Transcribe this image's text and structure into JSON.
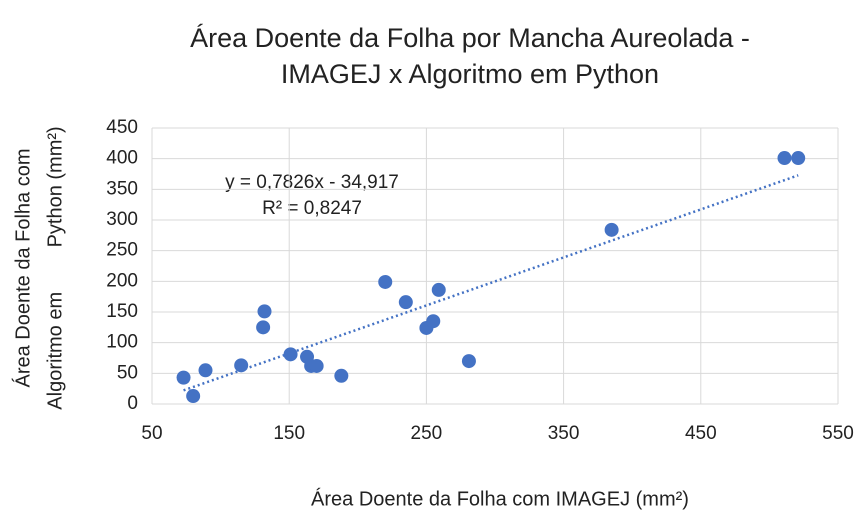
{
  "chart_data": {
    "type": "scatter",
    "title": [
      "Área Doente da Folha por Mancha Aureolada -",
      "IMAGEJ x Algoritmo em Python"
    ],
    "x_label": "Área Doente da Folha com IMAGEJ (mm²)",
    "y_label": [
      "Área Doente da Folha com",
      "Algoritmo em        Python (mm²)"
    ],
    "series": [
      {
        "name": "Área Doente",
        "color": "#4472c4",
        "x": [
          73,
          80,
          89,
          115,
          132,
          131,
          151,
          163,
          166,
          170,
          188,
          220,
          235,
          250,
          255,
          259,
          281,
          385,
          511,
          521
        ],
        "values": [
          43,
          13,
          55,
          63,
          151,
          125,
          81,
          77,
          62,
          62,
          46,
          199,
          166,
          124,
          135,
          186,
          70,
          284,
          401,
          401
        ]
      }
    ],
    "trendline": {
      "slope": 0.7826,
      "intercept": -34.917,
      "equation": "y = 0,7826x - 34,917",
      "r2": "R² = 0,8247"
    },
    "xlim": [
      50,
      550
    ],
    "xticks": [
      50,
      150,
      250,
      350,
      450,
      550
    ],
    "ylim": [
      0,
      450
    ],
    "yticks": [
      0,
      50,
      100,
      150,
      200,
      250,
      300,
      350,
      400,
      450
    ],
    "grid": true
  }
}
